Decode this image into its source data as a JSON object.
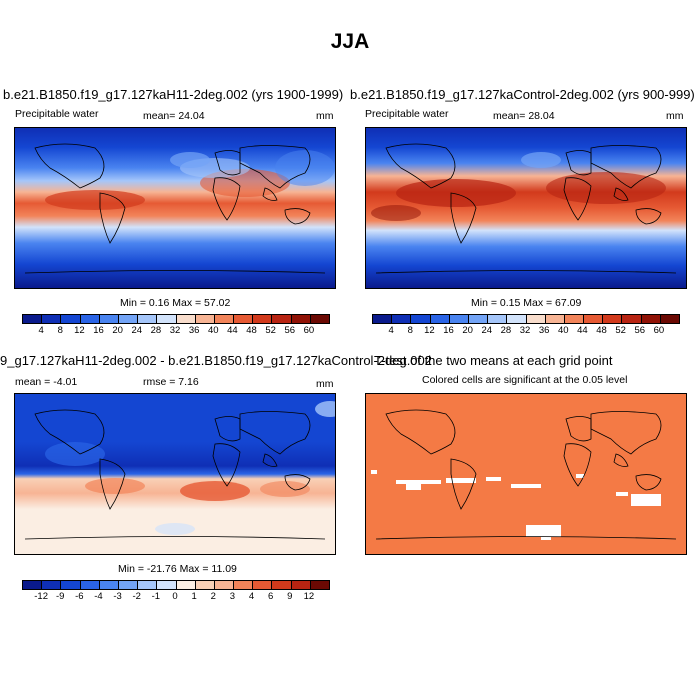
{
  "title": "JJA",
  "panels": {
    "a": {
      "title": "b.e21.B1850.f19_g17.127kaH11-2deg.002 (yrs 1900-1999)",
      "left_label": "Precipitable water",
      "center_label": "mean=  24.04",
      "right_label": "mm",
      "minmax": "Min =  0.16 Max =  57.02",
      "colorbar_labels": [
        "4",
        "8",
        "12",
        "16",
        "20",
        "24",
        "28",
        "32",
        "36",
        "40",
        "44",
        "48",
        "52",
        "56",
        "60"
      ]
    },
    "b": {
      "title": "b.e21.B1850.f19_g17.127kaControl-2deg.002 (yrs 900-999)",
      "left_label": "Precipitable water",
      "center_label": "mean=  28.04",
      "right_label": "mm",
      "minmax": "Min =  0.15 Max =  67.09",
      "colorbar_labels": [
        "4",
        "8",
        "12",
        "16",
        "20",
        "24",
        "28",
        "32",
        "36",
        "40",
        "44",
        "48",
        "52",
        "56",
        "60"
      ]
    },
    "c": {
      "title": "9_g17.127kaH11-2deg.002 - b.e21.B1850.f19_g17.127kaControl-2deg.002",
      "left_label": "mean =  -4.01",
      "center_label": "rmse =   7.16",
      "right_label": "mm",
      "minmax": "Min = -21.76 Max =  11.09",
      "colorbar_labels": [
        "-12",
        "-9",
        "-6",
        "-4",
        "-3",
        "-2",
        "-1",
        "0",
        "1",
        "2",
        "3",
        "4",
        "6",
        "9",
        "12"
      ]
    },
    "d": {
      "title": "T-test of the two means at each grid point",
      "subtitle": "Colored cells are significant at the 0.05 level",
      "significant_color": "#f47a45"
    }
  },
  "colors": {
    "abs_scale": [
      "#0a1a8c",
      "#0f2fb5",
      "#1446d2",
      "#2a64e6",
      "#4a84f0",
      "#73a4f6",
      "#a5c6fa",
      "#d2e3fb",
      "#f8ddcc",
      "#f7b494",
      "#f2845a",
      "#e65a34",
      "#d23a1c",
      "#b82412",
      "#901206",
      "#6b0903"
    ],
    "diff_scale": [
      "#0a1a8c",
      "#0f2fb5",
      "#1446d2",
      "#2a64e6",
      "#4a84f0",
      "#73a4f6",
      "#a5c6fa",
      "#d2e3fb",
      "#fbeee3",
      "#f8d0b6",
      "#f7b494",
      "#f2845a",
      "#e65a34",
      "#d23a1c",
      "#b82412",
      "#6b0903"
    ]
  }
}
